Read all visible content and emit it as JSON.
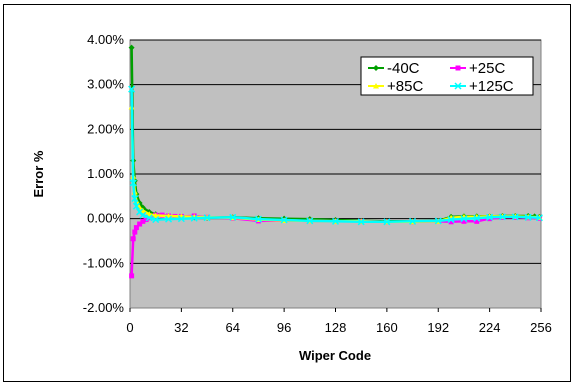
{
  "chart_data": {
    "type": "scatter",
    "title": "",
    "xlabel": "Wiper Code",
    "ylabel": "Error %",
    "xlim": [
      0,
      256
    ],
    "ylim": [
      -2.0,
      4.0
    ],
    "x_ticks": [
      0,
      32,
      64,
      96,
      128,
      160,
      192,
      224,
      256
    ],
    "x_tick_labels": [
      "0",
      "32",
      "64",
      "96",
      "128",
      "160",
      "192",
      "224",
      "256"
    ],
    "y_ticks": [
      -2.0,
      -1.0,
      0.0,
      1.0,
      2.0,
      3.0,
      4.0
    ],
    "y_tick_labels": [
      "-2.00%",
      "-1.00%",
      "0.00%",
      "1.00%",
      "2.00%",
      "3.00%",
      "4.00%"
    ],
    "grid": "horizontal",
    "plot_background": "#c0c0c0",
    "legend_position": "top-right",
    "series": [
      {
        "name": "-40C",
        "color": "#00a000",
        "marker": "diamond",
        "x": [
          1,
          2,
          3,
          4,
          6,
          8,
          12,
          16,
          24,
          32,
          40,
          48,
          64,
          80,
          96,
          112,
          128,
          144,
          160,
          176,
          192,
          200,
          208,
          216,
          224,
          232,
          240,
          248,
          252,
          255
        ],
        "y": [
          3.83,
          1.3,
          0.85,
          0.55,
          0.35,
          0.25,
          0.15,
          0.1,
          0.06,
          0.04,
          0.03,
          0.02,
          0.03,
          0.01,
          0.0,
          -0.01,
          -0.03,
          -0.05,
          -0.06,
          -0.06,
          -0.05,
          0.04,
          0.05,
          0.05,
          0.05,
          0.06,
          0.06,
          0.06,
          0.05,
          0.04
        ]
      },
      {
        "name": "+25C",
        "color": "#ff00ff",
        "marker": "square",
        "x": [
          1,
          2,
          3,
          4,
          6,
          8,
          10,
          12,
          16,
          20,
          24,
          28,
          32,
          40,
          48,
          64,
          80,
          96,
          112,
          128,
          144,
          160,
          176,
          192,
          200,
          208,
          216,
          224,
          232,
          240,
          248,
          255
        ],
        "y": [
          -1.28,
          -0.45,
          -0.3,
          -0.2,
          -0.12,
          -0.06,
          -0.02,
          0.02,
          0.08,
          0.08,
          0.06,
          0.05,
          0.05,
          0.06,
          0.03,
          0.01,
          -0.05,
          -0.04,
          -0.05,
          -0.06,
          -0.06,
          -0.07,
          -0.07,
          -0.06,
          -0.07,
          -0.06,
          -0.06,
          0.0,
          0.03,
          0.03,
          0.02,
          0.01
        ]
      },
      {
        "name": "+85C",
        "color": "#ffff00",
        "marker": "triangle",
        "x": [
          1,
          2,
          3,
          4,
          6,
          8,
          12,
          16,
          24,
          32,
          40,
          48,
          64,
          80,
          96,
          112,
          128,
          144,
          160,
          176,
          192,
          200,
          208,
          216,
          224,
          232,
          240,
          248,
          255
        ],
        "y": [
          2.5,
          0.95,
          0.6,
          0.4,
          0.25,
          0.18,
          0.1,
          0.07,
          0.06,
          0.05,
          0.04,
          0.03,
          0.02,
          -0.02,
          -0.04,
          -0.05,
          -0.06,
          -0.06,
          -0.07,
          -0.07,
          -0.06,
          0.02,
          0.04,
          0.04,
          0.05,
          0.05,
          0.05,
          0.04,
          0.03
        ]
      },
      {
        "name": "+125C",
        "color": "#00ffff",
        "marker": "x",
        "x": [
          1,
          2,
          3,
          4,
          6,
          8,
          12,
          16,
          24,
          32,
          40,
          48,
          64,
          80,
          96,
          112,
          128,
          144,
          160,
          176,
          192,
          200,
          208,
          216,
          224,
          232,
          240,
          248,
          255
        ],
        "y": [
          2.9,
          0.8,
          0.45,
          0.28,
          0.15,
          0.08,
          0.02,
          -0.02,
          -0.01,
          0.0,
          0.01,
          0.02,
          0.03,
          -0.01,
          -0.03,
          -0.05,
          -0.06,
          -0.07,
          -0.07,
          -0.06,
          -0.05,
          -0.02,
          0.0,
          0.01,
          0.03,
          0.04,
          0.04,
          0.03,
          0.02
        ]
      }
    ]
  }
}
